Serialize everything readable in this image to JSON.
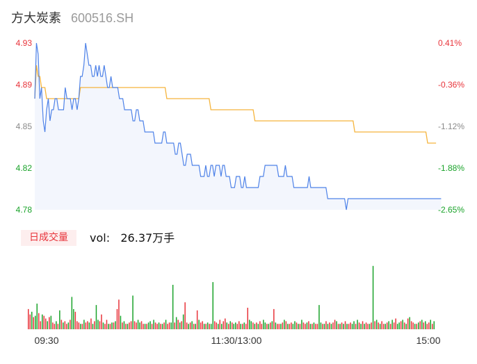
{
  "header": {
    "name": "方大炭素",
    "code": "600516.SH"
  },
  "volume_panel": {
    "tab_label": "日成交量",
    "vol_label": "vol:",
    "vol_value": "26.37万手"
  },
  "colors": {
    "price_line": "#4e82e8",
    "avg_line": "#f5b43c",
    "area_fill": "#f3f6fd",
    "up": "#e8333a",
    "down": "#1aa32a",
    "muted": "#8a8a8a"
  },
  "chart_data": [
    {
      "type": "line",
      "title": "",
      "x_ticks": [
        "09:30",
        "11:30/13:00",
        "15:00"
      ],
      "y_ticks_left": [
        "4.93",
        "4.89",
        "4.85",
        "4.82",
        "4.78"
      ],
      "y_ticks_right": [
        "0.41%",
        "-0.36%",
        "-1.12%",
        "-1.88%",
        "-2.65%"
      ],
      "ylim": [
        4.78,
        4.93
      ],
      "sessions": 240,
      "series": [
        {
          "role": "price",
          "values": [
            4.88,
            4.93,
            4.92,
            4.88,
            4.89,
            4.86,
            4.85,
            4.87,
            4.88,
            4.86,
            4.87,
            4.87,
            4.88,
            4.88,
            4.87,
            4.87,
            4.87,
            4.87,
            4.89,
            4.88,
            4.88,
            4.88,
            4.87,
            4.88,
            4.88,
            4.87,
            4.88,
            4.9,
            4.9,
            4.91,
            4.93,
            4.92,
            4.91,
            4.91,
            4.9,
            4.9,
            4.91,
            4.9,
            4.91,
            4.9,
            4.9,
            4.91,
            4.9,
            4.89,
            4.89,
            4.9,
            4.89,
            4.89,
            4.89,
            4.89,
            4.88,
            4.88,
            4.88,
            4.87,
            4.87,
            4.87,
            4.87,
            4.87,
            4.86,
            4.86,
            4.87,
            4.87,
            4.86,
            4.86,
            4.86,
            4.85,
            4.85,
            4.85,
            4.85,
            4.85,
            4.85,
            4.84,
            4.84,
            4.84,
            4.84,
            4.84,
            4.85,
            4.85,
            4.84,
            4.84,
            4.84,
            4.84,
            4.84,
            4.83,
            4.83,
            4.84,
            4.84,
            4.83,
            4.82,
            4.82,
            4.83,
            4.83,
            4.83,
            4.82,
            4.82,
            4.82,
            4.82,
            4.82,
            4.81,
            4.81,
            4.81,
            4.82,
            4.81,
            4.81,
            4.82,
            4.82,
            4.81,
            4.82,
            4.82,
            4.82,
            4.81,
            4.82,
            4.82,
            4.81,
            4.81,
            4.81,
            4.8,
            4.8,
            4.8,
            4.81,
            4.81,
            4.81,
            4.8,
            4.8,
            4.81,
            4.8,
            4.8,
            4.8,
            4.8,
            4.8,
            4.8,
            4.8,
            4.8,
            4.81,
            4.81,
            4.81,
            4.82,
            4.82,
            4.82,
            4.82,
            4.82,
            4.82,
            4.82,
            4.82,
            4.81,
            4.81,
            4.81,
            4.81,
            4.82,
            4.81,
            4.81,
            4.81,
            4.81,
            4.8,
            4.8,
            4.8,
            4.8,
            4.8,
            4.8,
            4.8,
            4.8,
            4.8,
            4.81,
            4.8,
            4.8,
            4.8,
            4.8,
            4.8,
            4.8,
            4.8,
            4.8,
            4.8,
            4.8,
            4.79,
            4.79,
            4.79,
            4.79,
            4.79,
            4.79,
            4.79,
            4.79,
            4.79,
            4.79,
            4.79,
            4.78,
            4.79,
            4.79,
            4.79,
            4.79,
            4.79,
            4.79,
            4.79,
            4.79,
            4.79,
            4.79,
            4.79,
            4.79,
            4.79,
            4.79,
            4.79,
            4.79,
            4.79,
            4.79,
            4.79,
            4.79,
            4.79,
            4.79,
            4.79,
            4.79,
            4.79,
            4.79,
            4.79,
            4.79,
            4.79,
            4.79,
            4.79,
            4.79,
            4.79,
            4.79,
            4.79,
            4.79,
            4.79,
            4.79,
            4.79,
            4.79,
            4.79,
            4.79,
            4.79,
            4.79,
            4.79,
            4.79,
            4.79,
            4.79,
            4.79,
            4.79,
            4.79,
            4.79,
            4.79,
            4.79,
            4.79,
            4.79
          ]
        },
        {
          "role": "average",
          "values": [
            4.88,
            4.91,
            4.9,
            4.9,
            4.89,
            4.89,
            4.89,
            4.88,
            4.88,
            4.88,
            4.88,
            4.88,
            4.88,
            4.88,
            4.88,
            4.88,
            4.88,
            4.88,
            4.88,
            4.88,
            4.88,
            4.88,
            4.88,
            4.88,
            4.88,
            4.88,
            4.88,
            4.89,
            4.89,
            4.89,
            4.89,
            4.89,
            4.89,
            4.89,
            4.89,
            4.89,
            4.89,
            4.89,
            4.89,
            4.89,
            4.89,
            4.89,
            4.89,
            4.89,
            4.89,
            4.89,
            4.89,
            4.89,
            4.89,
            4.89,
            4.89,
            4.89,
            4.89,
            4.89,
            4.89,
            4.89,
            4.89,
            4.89,
            4.89,
            4.89,
            4.89,
            4.89,
            4.89,
            4.89,
            4.89,
            4.89,
            4.89,
            4.89,
            4.89,
            4.89,
            4.89,
            4.89,
            4.89,
            4.89,
            4.89,
            4.89,
            4.89,
            4.89,
            4.88,
            4.88,
            4.88,
            4.88,
            4.88,
            4.88,
            4.88,
            4.88,
            4.88,
            4.88,
            4.88,
            4.88,
            4.88,
            4.88,
            4.88,
            4.88,
            4.88,
            4.88,
            4.88,
            4.88,
            4.88,
            4.88,
            4.88,
            4.88,
            4.88,
            4.88,
            4.87,
            4.87,
            4.87,
            4.87,
            4.87,
            4.87,
            4.87,
            4.87,
            4.87,
            4.87,
            4.87,
            4.87,
            4.87,
            4.87,
            4.87,
            4.87,
            4.87,
            4.87,
            4.87,
            4.87,
            4.87,
            4.87,
            4.87,
            4.87,
            4.87,
            4.87,
            4.86,
            4.86,
            4.86,
            4.86,
            4.86,
            4.86,
            4.86,
            4.86,
            4.86,
            4.86,
            4.86,
            4.86,
            4.86,
            4.86,
            4.86,
            4.86,
            4.86,
            4.86,
            4.86,
            4.86,
            4.86,
            4.86,
            4.86,
            4.86,
            4.86,
            4.86,
            4.86,
            4.86,
            4.86,
            4.86,
            4.86,
            4.86,
            4.86,
            4.86,
            4.86,
            4.86,
            4.86,
            4.86,
            4.86,
            4.86,
            4.86,
            4.86,
            4.86,
            4.86,
            4.86,
            4.86,
            4.86,
            4.86,
            4.86,
            4.86,
            4.86,
            4.86,
            4.86,
            4.86,
            4.86,
            4.86,
            4.86,
            4.86,
            4.86,
            4.85,
            4.85,
            4.85,
            4.85,
            4.85,
            4.85,
            4.85,
            4.85,
            4.85,
            4.85,
            4.85,
            4.85,
            4.85,
            4.85,
            4.85,
            4.85,
            4.85,
            4.85,
            4.85,
            4.85,
            4.85,
            4.85,
            4.85,
            4.85,
            4.85,
            4.85,
            4.85,
            4.85,
            4.85,
            4.85,
            4.85,
            4.85,
            4.85,
            4.85,
            4.85,
            4.85,
            4.85,
            4.85,
            4.85,
            4.85,
            4.85,
            4.85,
            4.85,
            4.84,
            4.84,
            4.84,
            4.84,
            4.84,
            4.84
          ]
        }
      ]
    },
    {
      "type": "bar",
      "title": "",
      "ylim": [
        0,
        100
      ],
      "values": [
        30,
        22,
        26,
        18,
        20,
        38,
        24,
        12,
        22,
        20,
        16,
        12,
        18,
        20,
        10,
        8,
        12,
        8,
        28,
        14,
        10,
        12,
        8,
        10,
        14,
        48,
        30,
        26,
        12,
        10,
        8,
        8,
        14,
        10,
        12,
        10,
        16,
        8,
        12,
        36,
        14,
        12,
        22,
        10,
        8,
        14,
        8,
        8,
        10,
        10,
        12,
        30,
        44,
        20,
        10,
        12,
        8,
        8,
        10,
        12,
        50,
        12,
        10,
        14,
        10,
        12,
        8,
        8,
        8,
        10,
        12,
        8,
        14,
        10,
        8,
        10,
        8,
        8,
        10,
        14,
        8,
        10,
        10,
        66,
        10,
        18,
        14,
        10,
        12,
        22,
        40,
        10,
        8,
        10,
        12,
        8,
        8,
        28,
        14,
        10,
        12,
        8,
        8,
        10,
        8,
        8,
        70,
        12,
        10,
        8,
        14,
        8,
        12,
        16,
        10,
        8,
        12,
        10,
        8,
        10,
        8,
        12,
        8,
        8,
        10,
        8,
        32,
        14,
        12,
        10,
        8,
        10,
        8,
        12,
        8,
        14,
        10,
        8,
        8,
        10,
        12,
        30,
        10,
        8,
        8,
        8,
        10,
        14,
        12,
        8,
        8,
        10,
        8,
        12,
        10,
        8,
        8,
        14,
        10,
        8,
        10,
        12,
        8,
        8,
        10,
        8,
        8,
        36,
        10,
        8,
        8,
        12,
        8,
        10,
        8,
        10,
        14,
        12,
        8,
        8,
        10,
        8,
        12,
        8,
        8,
        10,
        8,
        12,
        8,
        14,
        10,
        8,
        12,
        8,
        10,
        8,
        8,
        10,
        94,
        12,
        14,
        10,
        8,
        12,
        8,
        8,
        10,
        12,
        8,
        14,
        10,
        16,
        8,
        10,
        12,
        14,
        10,
        8,
        16,
        18,
        12,
        10,
        8,
        8,
        10,
        12,
        14,
        10,
        12,
        8,
        10,
        14,
        8,
        12
      ],
      "up_down": [
        1,
        1,
        0,
        1,
        0,
        0,
        1,
        1,
        0,
        1,
        1,
        0,
        1,
        0,
        1,
        1,
        0,
        1,
        0,
        1,
        0,
        1,
        1,
        0,
        1,
        0,
        0,
        1,
        1,
        1,
        0,
        1,
        0,
        1,
        1,
        0,
        1,
        0,
        1,
        0,
        0,
        1,
        1,
        0,
        1,
        1,
        0,
        1,
        0,
        1,
        0,
        1,
        1,
        0,
        1,
        0,
        1,
        0,
        1,
        1,
        0,
        1,
        1,
        0,
        0,
        1,
        1,
        0,
        1,
        0,
        0,
        1,
        0,
        1,
        1,
        0,
        1,
        0,
        1,
        0,
        1,
        1,
        0,
        0,
        1,
        0,
        1,
        0,
        1,
        0,
        1,
        1,
        0,
        1,
        0,
        1,
        0,
        1,
        0,
        1,
        1,
        0,
        1,
        0,
        1,
        0,
        0,
        1,
        1,
        0,
        1,
        0,
        1,
        1,
        0,
        1,
        0,
        1,
        0,
        0,
        1,
        1,
        0,
        1,
        0,
        1,
        1,
        0,
        0,
        1,
        0,
        1,
        0,
        1,
        1,
        0,
        0,
        1,
        0,
        1,
        0,
        1,
        0,
        1,
        1,
        0,
        1,
        0,
        1,
        0,
        1,
        1,
        0,
        0,
        1,
        0,
        1,
        0,
        1,
        1,
        0,
        1,
        0,
        1,
        0,
        1,
        1,
        0,
        0,
        1,
        0,
        1,
        0,
        1,
        0,
        1,
        1,
        0,
        1,
        0,
        1,
        0,
        1,
        0,
        1,
        1,
        0,
        0,
        1,
        0,
        1,
        0,
        1,
        0,
        1,
        1,
        0,
        1,
        0,
        1,
        0,
        1,
        0,
        1,
        1,
        0,
        1,
        0,
        1,
        0,
        1,
        1,
        0,
        0,
        1,
        0,
        1,
        0,
        1,
        0,
        1,
        1,
        0,
        1,
        0,
        1,
        0,
        1,
        0,
        1,
        1,
        0,
        1,
        0,
        1,
        0,
        1,
        0,
        1,
        1,
        0,
        1,
        0,
        1
      ]
    }
  ]
}
